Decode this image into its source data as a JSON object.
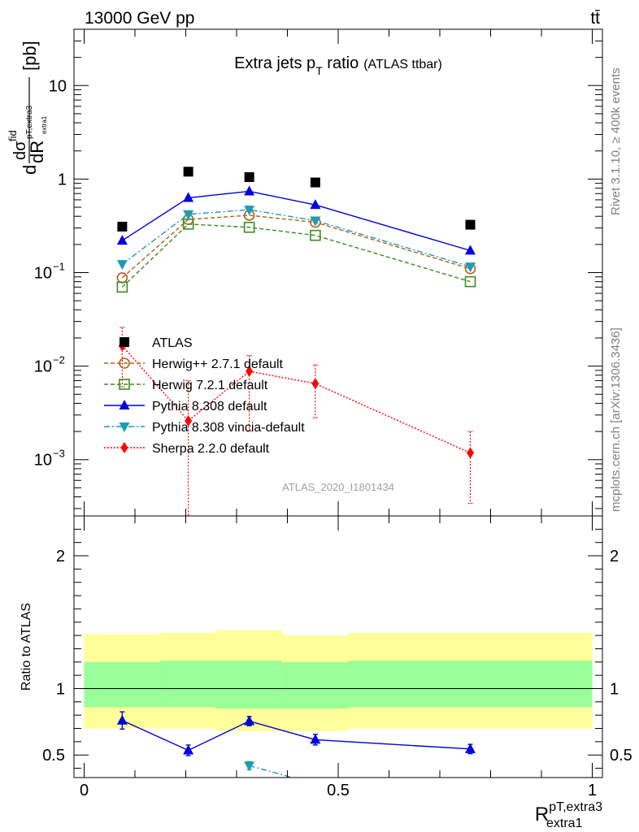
{
  "header": {
    "energy": "13000 GeV pp",
    "process": "tt̄"
  },
  "side_text": {
    "rivet": "Rivet 3.1.10, ≥ 400k events",
    "mcplots": "mcplots.cern.ch [arXiv:1306.3436]"
  },
  "watermark": "ATLAS_2020_I1801434",
  "chart_data": [
    {
      "type": "line",
      "panel": "main",
      "title": "Extra jets p",
      "title_sub": "T",
      "title_tail": " ratio",
      "title_note": "(ATLAS ttbar)",
      "ylabel": "dσ/dR [pb]",
      "yscale": "log",
      "ylim": [
        0.00025,
        40
      ],
      "xlim": [
        -0.02,
        1.02
      ],
      "yticks": [
        "10^-3",
        "10^-2",
        "10^-1",
        "1",
        "10"
      ],
      "legend_position": "bottom-left",
      "series": [
        {
          "name": "ATLAS",
          "style": "data",
          "color": "#000000",
          "marker": "square",
          "x": [
            0.075,
            0.205,
            0.325,
            0.455,
            0.76
          ],
          "y": [
            0.31,
            1.2,
            1.05,
            0.92,
            0.325
          ]
        },
        {
          "name": "Herwig++ 2.7.1 default",
          "style": "dashed",
          "color": "#b45f1e",
          "marker": "open-circle",
          "x": [
            0.075,
            0.205,
            0.325,
            0.455,
            0.76
          ],
          "y": [
            0.088,
            0.37,
            0.41,
            0.345,
            0.11
          ]
        },
        {
          "name": "Herwig 7.2.1 default",
          "style": "dashed",
          "color": "#3c8c1e",
          "marker": "open-square",
          "x": [
            0.075,
            0.205,
            0.325,
            0.455,
            0.76
          ],
          "y": [
            0.07,
            0.33,
            0.305,
            0.25,
            0.08
          ]
        },
        {
          "name": "Pythia 8.308 default",
          "style": "solid",
          "color": "#0000dd",
          "marker": "triangle-up",
          "x": [
            0.075,
            0.205,
            0.325,
            0.455,
            0.76
          ],
          "y": [
            0.22,
            0.63,
            0.74,
            0.53,
            0.172
          ]
        },
        {
          "name": "Pythia 8.308 vincia-default",
          "style": "dashdot",
          "color": "#1e9bb4",
          "marker": "triangle-down",
          "x": [
            0.075,
            0.205,
            0.325,
            0.455,
            0.76
          ],
          "y": [
            0.123,
            0.42,
            0.47,
            0.36,
            0.116
          ]
        },
        {
          "name": "Sherpa 2.2.0 default",
          "style": "dotted",
          "color": "#ff0000",
          "marker": "diamond",
          "x": [
            0.075,
            0.205,
            0.325,
            0.455,
            0.76
          ],
          "y": [
            0.0165,
            0.0026,
            0.0088,
            0.0065,
            0.00118
          ],
          "err_hi": [
            0.026,
            0.007,
            0.013,
            0.0103,
            0.002
          ],
          "err_lo": [
            0.006,
            0.0001,
            0.002,
            0.0028,
            0.00034
          ]
        }
      ]
    },
    {
      "type": "line",
      "panel": "ratio",
      "ylabel": "Ratio to ATLAS",
      "xlabel": "R",
      "xlabel_sup": "pT,extra3",
      "xlabel_sub": "extra1",
      "xlim": [
        -0.02,
        1.02
      ],
      "ylim": [
        0.33,
        2.3
      ],
      "xticks": [
        "0",
        "0.5",
        "1"
      ],
      "yticks": [
        "0.5",
        "1",
        "2"
      ],
      "bands": [
        {
          "x": [
            0.0,
            0.15
          ],
          "inner": [
            0.86,
            1.2
          ],
          "outer": [
            0.7,
            1.41
          ]
        },
        {
          "x": [
            0.15,
            0.26
          ],
          "inner": [
            0.86,
            1.21
          ],
          "outer": [
            0.7,
            1.42
          ]
        },
        {
          "x": [
            0.26,
            0.39
          ],
          "inner": [
            0.85,
            1.21
          ],
          "outer": [
            0.68,
            1.44
          ]
        },
        {
          "x": [
            0.39,
            0.52
          ],
          "inner": [
            0.85,
            1.2
          ],
          "outer": [
            0.68,
            1.4
          ]
        },
        {
          "x": [
            0.52,
            1.0
          ],
          "inner": [
            0.86,
            1.21
          ],
          "outer": [
            0.7,
            1.42
          ]
        }
      ],
      "series": [
        {
          "name": "Pythia 8.308 default",
          "style": "solid",
          "color": "#0000dd",
          "marker": "triangle-up",
          "x": [
            0.075,
            0.205,
            0.325,
            0.455,
            0.76
          ],
          "y": [
            0.76,
            0.535,
            0.755,
            0.615,
            0.545
          ],
          "err": [
            0.065,
            0.04,
            0.035,
            0.04,
            0.035
          ]
        },
        {
          "name": "Pythia 8.308 vincia-default",
          "style": "dashdot",
          "color": "#1e9bb4",
          "marker": "triangle-down",
          "x": [
            0.325,
            0.41
          ],
          "y": [
            0.42,
            0.33
          ],
          "err": [
            0.03,
            0
          ]
        }
      ]
    }
  ]
}
